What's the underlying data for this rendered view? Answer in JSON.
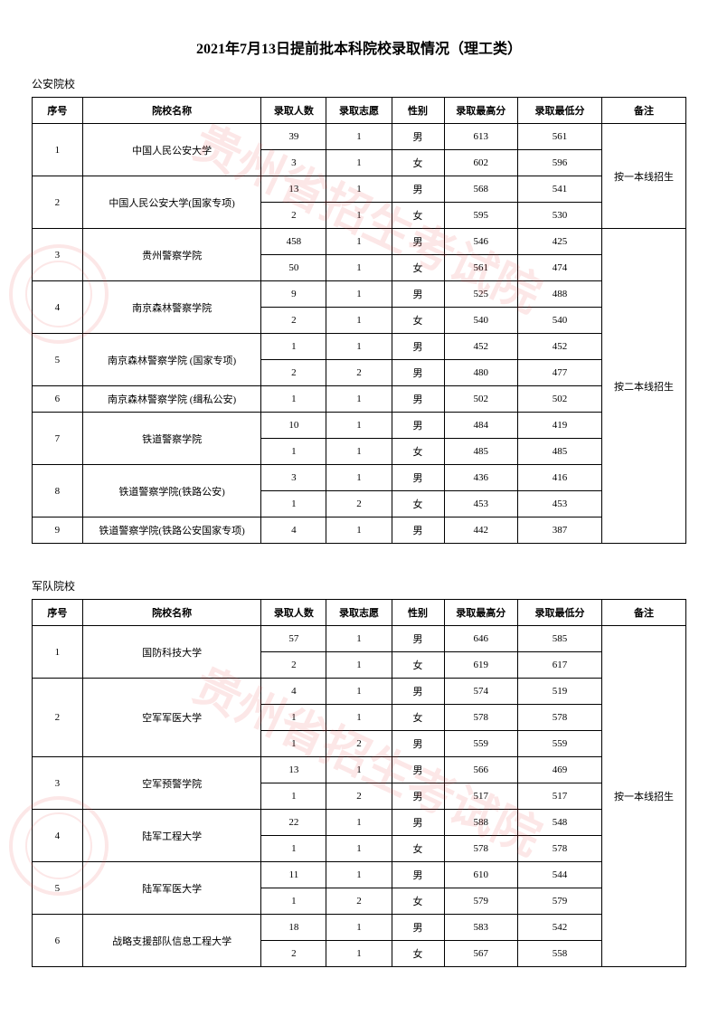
{
  "title": "2021年7月13日提前批本科院校录取情况（理工类）",
  "watermark_text": "贵州省招生考试院",
  "headers": {
    "idx": "序号",
    "name": "院校名称",
    "count": "录取人数",
    "wish": "录取志愿",
    "gender": "性别",
    "high": "录取最高分",
    "low": "录取最低分",
    "note": "备注"
  },
  "table1": {
    "label": "公安院校",
    "notes": {
      "n1": "按一本线招生",
      "n2": "按二本线招生"
    },
    "schools": [
      {
        "idx": "1",
        "name": "中国人民公安大学",
        "rows": [
          {
            "count": "39",
            "wish": "1",
            "gender": "男",
            "high": "613",
            "low": "561"
          },
          {
            "count": "3",
            "wish": "1",
            "gender": "女",
            "high": "602",
            "low": "596"
          }
        ]
      },
      {
        "idx": "2",
        "name": "中国人民公安大学(国家专项)",
        "rows": [
          {
            "count": "13",
            "wish": "1",
            "gender": "男",
            "high": "568",
            "low": "541"
          },
          {
            "count": "2",
            "wish": "1",
            "gender": "女",
            "high": "595",
            "low": "530"
          }
        ]
      },
      {
        "idx": "3",
        "name": "贵州警察学院",
        "rows": [
          {
            "count": "458",
            "wish": "1",
            "gender": "男",
            "high": "546",
            "low": "425"
          },
          {
            "count": "50",
            "wish": "1",
            "gender": "女",
            "high": "561",
            "low": "474"
          }
        ]
      },
      {
        "idx": "4",
        "name": "南京森林警察学院",
        "rows": [
          {
            "count": "9",
            "wish": "1",
            "gender": "男",
            "high": "525",
            "low": "488"
          },
          {
            "count": "2",
            "wish": "1",
            "gender": "女",
            "high": "540",
            "low": "540"
          }
        ]
      },
      {
        "idx": "5",
        "name": "南京森林警察学院 (国家专项)",
        "rows": [
          {
            "count": "1",
            "wish": "1",
            "gender": "男",
            "high": "452",
            "low": "452"
          },
          {
            "count": "2",
            "wish": "2",
            "gender": "男",
            "high": "480",
            "low": "477"
          }
        ]
      },
      {
        "idx": "6",
        "name": "南京森林警察学院 (缉私公安)",
        "rows": [
          {
            "count": "1",
            "wish": "1",
            "gender": "男",
            "high": "502",
            "low": "502"
          }
        ]
      },
      {
        "idx": "7",
        "name": "铁道警察学院",
        "rows": [
          {
            "count": "10",
            "wish": "1",
            "gender": "男",
            "high": "484",
            "low": "419"
          },
          {
            "count": "1",
            "wish": "1",
            "gender": "女",
            "high": "485",
            "low": "485"
          }
        ]
      },
      {
        "idx": "8",
        "name": "铁道警察学院(铁路公安)",
        "rows": [
          {
            "count": "3",
            "wish": "1",
            "gender": "男",
            "high": "436",
            "low": "416"
          },
          {
            "count": "1",
            "wish": "2",
            "gender": "女",
            "high": "453",
            "low": "453"
          }
        ]
      },
      {
        "idx": "9",
        "name": "铁道警察学院(铁路公安国家专项)",
        "rows": [
          {
            "count": "4",
            "wish": "1",
            "gender": "男",
            "high": "442",
            "low": "387"
          }
        ]
      }
    ]
  },
  "table2": {
    "label": "军队院校",
    "note": "按一本线招生",
    "schools": [
      {
        "idx": "1",
        "name": "国防科技大学",
        "rows": [
          {
            "count": "57",
            "wish": "1",
            "gender": "男",
            "high": "646",
            "low": "585"
          },
          {
            "count": "2",
            "wish": "1",
            "gender": "女",
            "high": "619",
            "low": "617"
          }
        ]
      },
      {
        "idx": "2",
        "name": "空军军医大学",
        "rows": [
          {
            "count": "4",
            "wish": "1",
            "gender": "男",
            "high": "574",
            "low": "519"
          },
          {
            "count": "1",
            "wish": "1",
            "gender": "女",
            "high": "578",
            "low": "578"
          },
          {
            "count": "1",
            "wish": "2",
            "gender": "男",
            "high": "559",
            "low": "559"
          }
        ]
      },
      {
        "idx": "3",
        "name": "空军预警学院",
        "rows": [
          {
            "count": "13",
            "wish": "1",
            "gender": "男",
            "high": "566",
            "low": "469"
          },
          {
            "count": "1",
            "wish": "2",
            "gender": "男",
            "high": "517",
            "low": "517"
          }
        ]
      },
      {
        "idx": "4",
        "name": "陆军工程大学",
        "rows": [
          {
            "count": "22",
            "wish": "1",
            "gender": "男",
            "high": "588",
            "low": "548"
          },
          {
            "count": "1",
            "wish": "1",
            "gender": "女",
            "high": "578",
            "low": "578"
          }
        ]
      },
      {
        "idx": "5",
        "name": "陆军军医大学",
        "rows": [
          {
            "count": "11",
            "wish": "1",
            "gender": "男",
            "high": "610",
            "low": "544"
          },
          {
            "count": "1",
            "wish": "2",
            "gender": "女",
            "high": "579",
            "low": "579"
          }
        ]
      },
      {
        "idx": "6",
        "name": "战略支援部队信息工程大学",
        "rows": [
          {
            "count": "18",
            "wish": "1",
            "gender": "男",
            "high": "583",
            "low": "542"
          },
          {
            "count": "2",
            "wish": "1",
            "gender": "女",
            "high": "567",
            "low": "558"
          }
        ]
      }
    ]
  }
}
